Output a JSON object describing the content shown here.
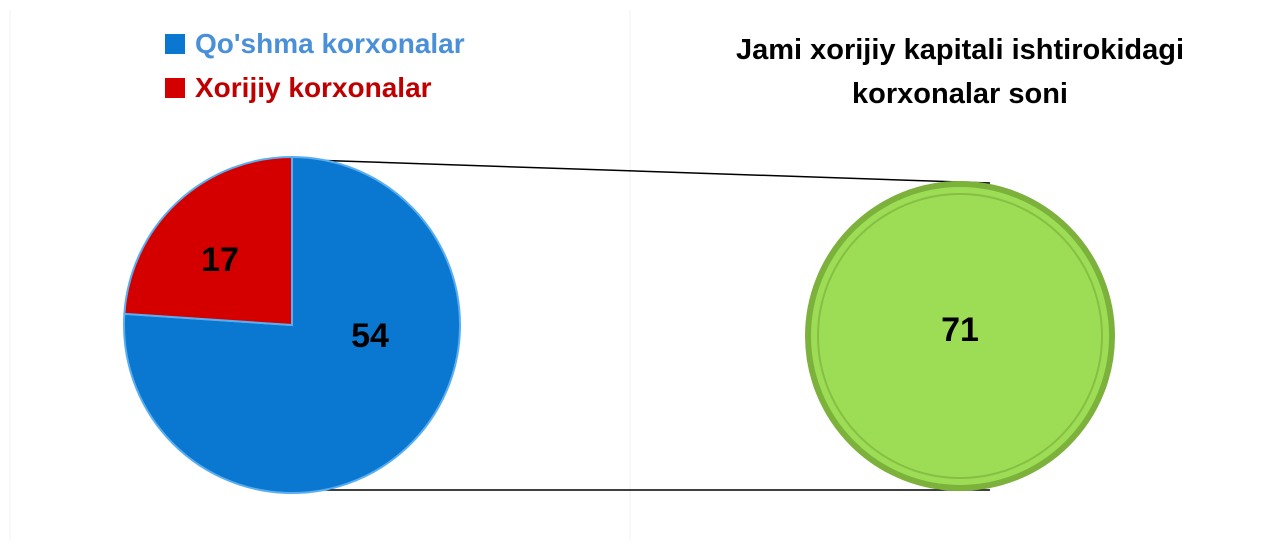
{
  "chart_data": [
    {
      "type": "pie",
      "categories": [
        "Qo'shma korxonalar",
        "Xorijiy korxonalar"
      ],
      "values": [
        54,
        17
      ],
      "colors": [
        "#0a78d0",
        "#d40000"
      ],
      "legend_colors": [
        "#4a90d9",
        "#c00000"
      ]
    },
    {
      "type": "pie",
      "title": "Jami xorijiy kapitali ishtirokidagi korxonalar soni",
      "values": [
        71
      ],
      "colors": [
        "#9ddd55"
      ]
    }
  ]
}
